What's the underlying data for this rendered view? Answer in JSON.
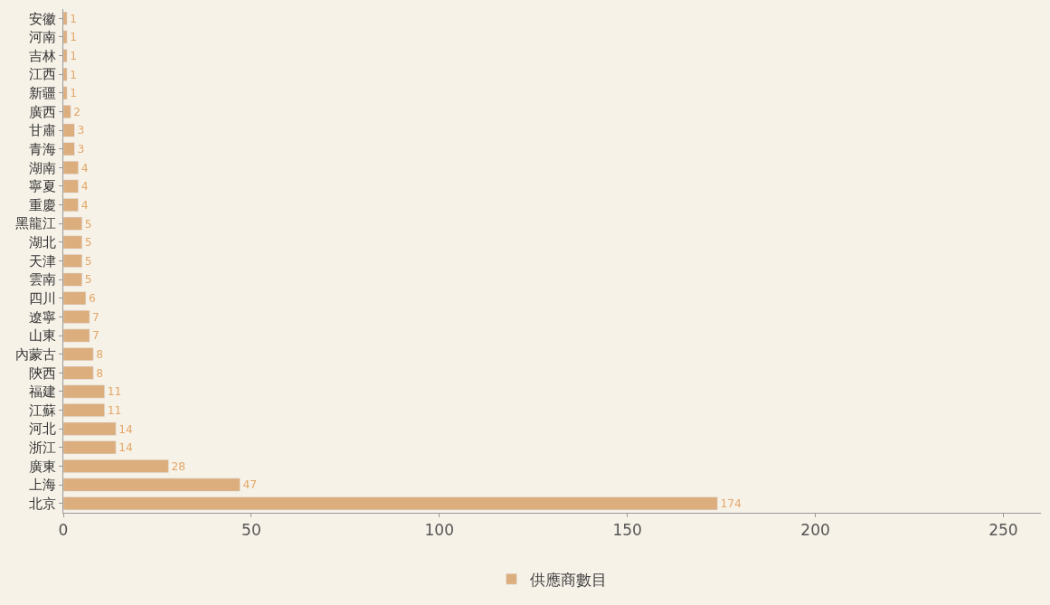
{
  "chart_data": {
    "type": "bar",
    "orientation": "horizontal",
    "categories": [
      "安徽",
      "河南",
      "吉林",
      "江西",
      "新疆",
      "廣西",
      "甘肅",
      "青海",
      "湖南",
      "寧夏",
      "重慶",
      "黑龍江",
      "湖北",
      "天津",
      "雲南",
      "四川",
      "遼寧",
      "山東",
      "內蒙古",
      "陝西",
      "福建",
      "江蘇",
      "河北",
      "浙江",
      "廣東",
      "上海",
      "北京"
    ],
    "series": [
      {
        "name": "供應商數目",
        "color": "#dcae7e",
        "values": [
          1,
          1,
          1,
          1,
          1,
          2,
          3,
          3,
          4,
          4,
          4,
          5,
          5,
          5,
          5,
          6,
          7,
          7,
          8,
          8,
          11,
          11,
          14,
          14,
          28,
          47,
          174
        ]
      }
    ],
    "xlim": [
      0,
      260
    ],
    "xticks": [
      0,
      50,
      100,
      150,
      200,
      250
    ],
    "data_labels": true,
    "grid": false,
    "legend": "bottom"
  }
}
